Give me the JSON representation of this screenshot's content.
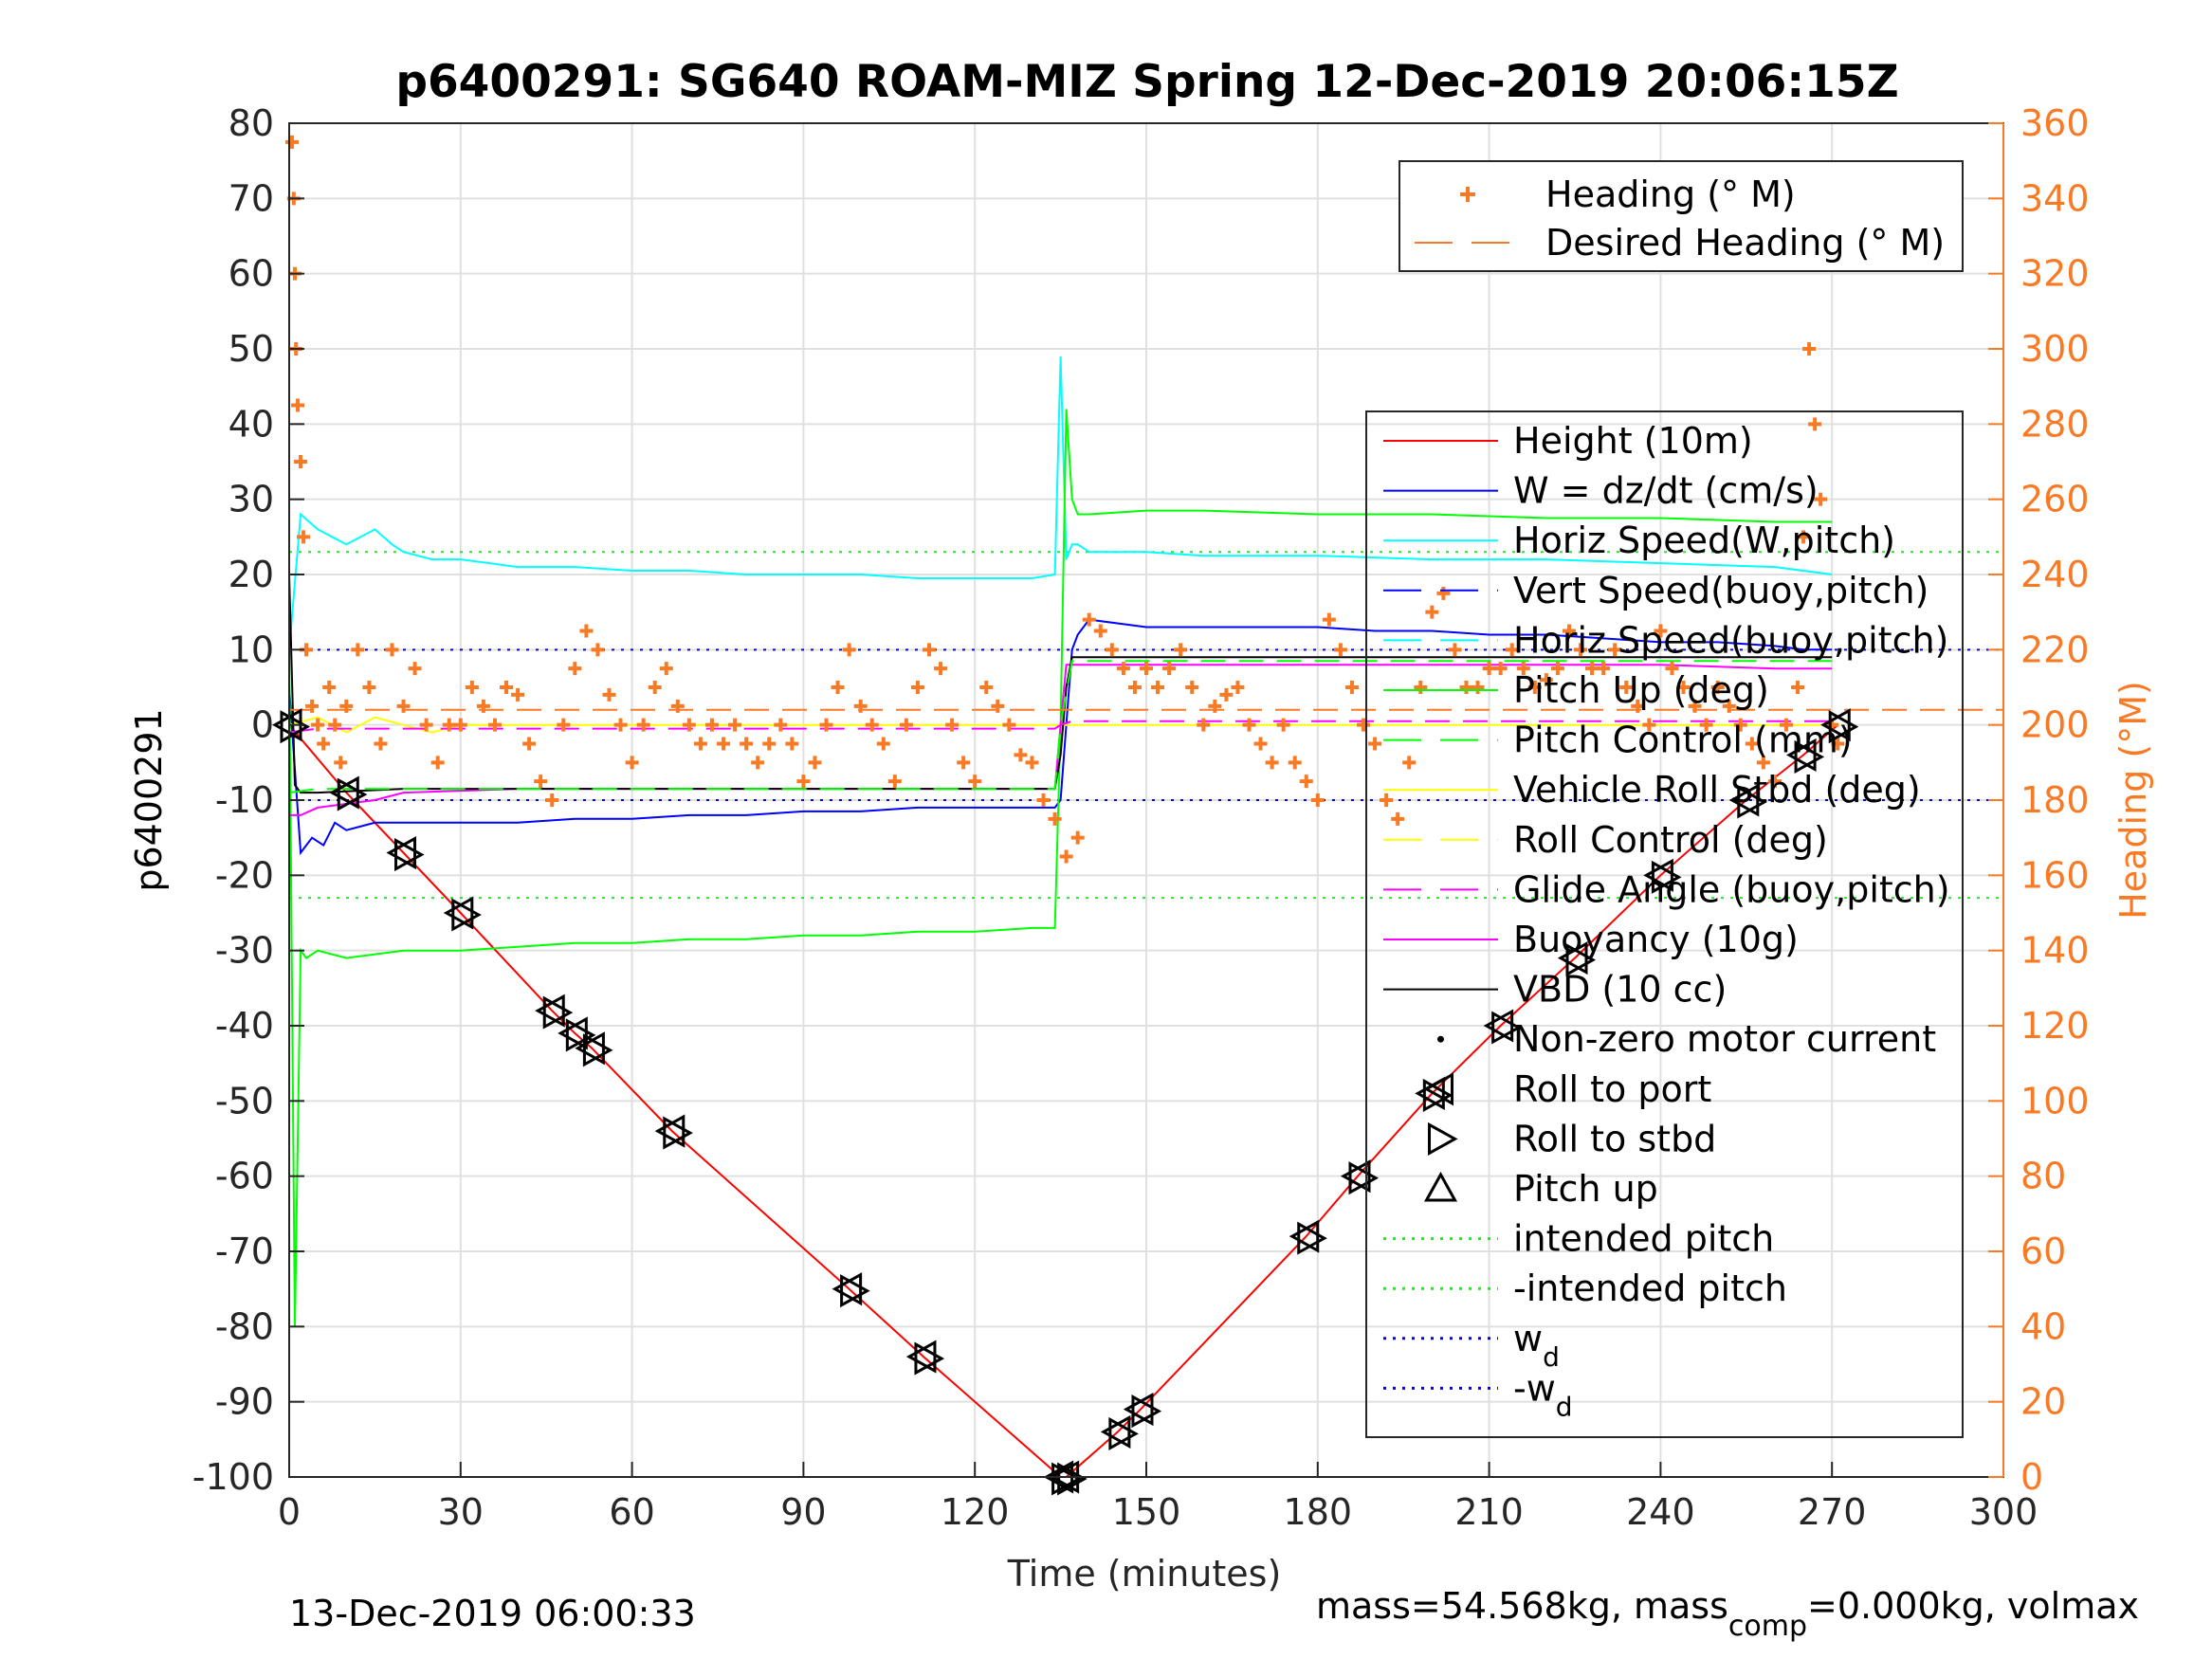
{
  "chart_data": {
    "type": "line",
    "title": "p6400291: SG640 ROAM-MIZ Spring 12-Dec-2019 20:06:15Z",
    "xlabel": "Time (minutes)",
    "ylabel": "p6400291",
    "y2label": "Heading (°M)",
    "xlim": [
      0,
      300
    ],
    "ylim": [
      -100,
      80
    ],
    "y2lim": [
      0,
      360
    ],
    "xticks": [
      0,
      30,
      60,
      90,
      120,
      150,
      180,
      210,
      240,
      270,
      300
    ],
    "yticks": [
      -100,
      -90,
      -80,
      -70,
      -60,
      -50,
      -40,
      -30,
      -20,
      -10,
      0,
      10,
      20,
      30,
      40,
      50,
      60,
      70,
      80
    ],
    "y2ticks": [
      0,
      20,
      40,
      60,
      80,
      100,
      120,
      140,
      160,
      180,
      200,
      220,
      240,
      260,
      280,
      300,
      320,
      340,
      360
    ],
    "grid": true,
    "footer_left": "13-Dec-2019 06:00:33",
    "footer_right_prefix": "mass=54.568kg, mass",
    "footer_right_sub": "comp",
    "footer_right_suffix": "=0.000kg, volmax",
    "colors": {
      "heading": "#f97a25",
      "height": "#ff0000",
      "w": "#0000ff",
      "horiz_speed": "#00ffff",
      "pitch": "#00ff00",
      "roll": "#ffff00",
      "glide": "#ff00ff",
      "vbd": "#000000",
      "axis_right": "#f97a25"
    },
    "legend_heading": [
      {
        "label": "Heading (° M)",
        "style": "plus",
        "color": "#f97a25"
      },
      {
        "label": "Desired Heading (° M)",
        "style": "dash",
        "color": "#f97a25"
      }
    ],
    "legend_main": [
      {
        "label": "Height (10m)",
        "style": "line",
        "color": "#ff0000"
      },
      {
        "label": "W = dz/dt (cm/s)",
        "style": "line",
        "color": "#0000ff"
      },
      {
        "label": "Horiz Speed(W,pitch)",
        "style": "line",
        "color": "#00ffff"
      },
      {
        "label": "Vert Speed(buoy,pitch)",
        "style": "dash",
        "color": "#0000ff"
      },
      {
        "label": "Horiz Speed(buoy,pitch)",
        "style": "dash",
        "color": "#00ffff"
      },
      {
        "label": "Pitch Up (deg)",
        "style": "line",
        "color": "#00ff00"
      },
      {
        "label": "Pitch Control (mm)",
        "style": "dash",
        "color": "#00ff00"
      },
      {
        "label": "Vehicle Roll Stbd (deg)",
        "style": "line",
        "color": "#ffff00"
      },
      {
        "label": "Roll Control (deg)",
        "style": "dash",
        "color": "#ffff00"
      },
      {
        "label": "Glide Angle (buoy,pitch)",
        "style": "dash",
        "color": "#ff00ff"
      },
      {
        "label": "Buoyancy (10g)",
        "style": "line",
        "color": "#ff00ff"
      },
      {
        "label": "VBD (10 cc)",
        "style": "line",
        "color": "#000000"
      },
      {
        "label": "Non-zero motor current",
        "style": "dot",
        "color": "#000000"
      },
      {
        "label": "Roll to port",
        "style": "tri-left",
        "color": "#000000"
      },
      {
        "label": "Roll to stbd",
        "style": "tri-right",
        "color": "#000000"
      },
      {
        "label": "Pitch up",
        "style": "tri-up",
        "color": "#000000"
      },
      {
        "label": "intended pitch",
        "style": "dot-line",
        "color": "#00ff00"
      },
      {
        "label": "-intended pitch",
        "style": "dot-line",
        "color": "#00ff00"
      },
      {
        "label": "w",
        "sub": "d",
        "style": "dot-line",
        "color": "#0000ff"
      },
      {
        "label": "-w",
        "sub": "d",
        "style": "dot-line",
        "color": "#0000ff"
      }
    ],
    "reference_lines": [
      {
        "y": 23,
        "color": "#00ff00"
      },
      {
        "y": -23,
        "color": "#00ff00"
      },
      {
        "y": 10,
        "color": "#0000ff"
      },
      {
        "y": -10,
        "color": "#0000ff"
      }
    ],
    "series": [
      {
        "name": "Height (10m)",
        "color": "#ff0000",
        "axis": "left",
        "x": [
          0,
          10,
          20,
          30,
          46,
          50,
          53,
          67,
          98,
          111,
          135,
          136,
          145,
          149,
          178,
          187,
          200,
          212,
          225,
          240,
          255,
          265,
          271
        ],
        "y": [
          0,
          -9,
          -17,
          -25,
          -38,
          -41,
          -43,
          -54,
          -75,
          -84,
          -100,
          -100,
          -94,
          -91,
          -68,
          -60,
          -49,
          -40,
          -31,
          -20,
          -10,
          -4,
          0
        ]
      },
      {
        "name": "W = dz/dt (cm/s)",
        "color": "#0000ff",
        "axis": "left",
        "x": [
          0,
          2,
          4,
          6,
          8,
          10,
          15,
          20,
          30,
          40,
          50,
          60,
          70,
          80,
          90,
          100,
          110,
          120,
          130,
          134,
          135,
          136,
          137,
          138,
          140,
          150,
          160,
          170,
          180,
          190,
          200,
          210,
          220,
          230,
          240,
          250,
          260,
          265,
          270
        ],
        "y": [
          5,
          -17,
          -15,
          -16,
          -13,
          -14,
          -13,
          -13,
          -13,
          -13,
          -12.5,
          -12.5,
          -12,
          -12,
          -11.5,
          -11.5,
          -11,
          -11,
          -11,
          -11,
          -10,
          0,
          10,
          12,
          14,
          13,
          13,
          13,
          13,
          12.5,
          12.5,
          12,
          12,
          11.5,
          11,
          11,
          10.5,
          10,
          10
        ]
      },
      {
        "name": "Horiz Speed(W,pitch)",
        "color": "#00ffff",
        "axis": "left",
        "x": [
          0,
          2,
          5,
          10,
          15,
          18,
          20,
          25,
          30,
          40,
          50,
          60,
          70,
          80,
          90,
          100,
          110,
          120,
          130,
          134,
          135,
          136,
          137,
          138,
          140,
          150,
          160,
          180,
          200,
          220,
          240,
          260,
          270
        ],
        "y": [
          10,
          28,
          26,
          24,
          26,
          24,
          23,
          22,
          22,
          21,
          21,
          20.5,
          20.5,
          20,
          20,
          20,
          19.5,
          19.5,
          19.5,
          20,
          49,
          22,
          24,
          24,
          23,
          23,
          22.5,
          22.5,
          22,
          22,
          21.5,
          21,
          20
        ]
      },
      {
        "name": "Pitch Up (deg)",
        "color": "#00ff00",
        "axis": "left",
        "x": [
          0,
          1,
          2,
          3,
          5,
          10,
          20,
          30,
          40,
          50,
          60,
          70,
          80,
          90,
          100,
          110,
          120,
          130,
          134,
          135,
          136,
          137,
          138,
          140,
          150,
          160,
          180,
          200,
          220,
          240,
          260,
          270
        ],
        "y": [
          10,
          -80,
          -30,
          -31,
          -30,
          -31,
          -30,
          -30,
          -29.5,
          -29,
          -29,
          -28.5,
          -28.5,
          -28,
          -28,
          -27.5,
          -27.5,
          -27,
          -27,
          0,
          42,
          30,
          28,
          28,
          28.5,
          28.5,
          28,
          28,
          27.5,
          27.5,
          27,
          27
        ]
      },
      {
        "name": "Vehicle Roll Stbd (deg)",
        "color": "#ffff00",
        "axis": "left",
        "x": [
          0,
          5,
          10,
          15,
          20,
          25,
          30,
          40,
          50,
          60,
          70,
          80,
          90,
          100,
          110,
          120,
          130,
          135,
          140,
          150,
          160,
          170,
          180,
          190,
          200,
          210,
          220,
          230,
          240,
          250,
          260,
          270
        ],
        "y": [
          0,
          1,
          -1,
          1,
          0,
          -1,
          0,
          0,
          0,
          0,
          0,
          0,
          0,
          0,
          0,
          0,
          0,
          0,
          0,
          0,
          0,
          0,
          0,
          0,
          0,
          0,
          0,
          0,
          0,
          0,
          0,
          0
        ]
      },
      {
        "name": "Buoyancy (10g)",
        "color": "#ff00ff",
        "axis": "left",
        "x": [
          0,
          2,
          5,
          15,
          20,
          40,
          60,
          80,
          100,
          120,
          130,
          134,
          135,
          136,
          137,
          140,
          160,
          200,
          220,
          240,
          260,
          270
        ],
        "y": [
          -12,
          -12,
          -11,
          -10,
          -9,
          -8.5,
          -8.5,
          -8.5,
          -8.5,
          -8.5,
          -8.5,
          -8.5,
          0,
          8,
          8,
          8,
          8,
          8,
          8,
          8,
          7.5,
          7.5
        ]
      },
      {
        "name": "VBD (10 cc)",
        "color": "#000000",
        "axis": "left",
        "x": [
          0,
          1,
          2,
          5,
          20,
          40,
          60,
          80,
          100,
          120,
          134,
          135,
          136,
          137,
          140,
          160,
          200,
          240,
          270
        ],
        "y": [
          20,
          -8,
          -9,
          -9,
          -8.5,
          -8.5,
          -8.5,
          -8.5,
          -8.5,
          -8.5,
          -8.5,
          -4,
          5,
          9,
          9,
          9,
          9,
          9,
          9
        ]
      },
      {
        "name": "Glide Angle (buoy,pitch)",
        "color": "#ff00ff",
        "axis": "left",
        "dashed": true,
        "x": [
          0,
          5,
          134,
          135,
          137,
          270
        ],
        "y": [
          -1,
          -0.5,
          -0.5,
          0,
          0.5,
          0.5
        ]
      },
      {
        "name": "Pitch Control (mm)",
        "color": "#00ff00",
        "axis": "left",
        "dashed": true,
        "x": [
          0,
          5,
          134,
          135,
          137,
          270
        ],
        "y": [
          -9,
          -8.5,
          -8.5,
          0,
          8.5,
          8.5
        ]
      },
      {
        "name": "Desired Heading (° M)",
        "color": "#f97a25",
        "axis": "right",
        "dashed": true,
        "x": [
          0,
          300
        ],
        "y": [
          204,
          204
        ]
      },
      {
        "name": "Heading (° M)",
        "color": "#f97a25",
        "axis": "right",
        "marker": "plus",
        "x": [
          0.5,
          0.8,
          1,
          1.2,
          1.5,
          2,
          2.5,
          3,
          4,
          5,
          6,
          7,
          8,
          9,
          10,
          12,
          14,
          16,
          18,
          20,
          22,
          24,
          26,
          28,
          30,
          32,
          34,
          36,
          38,
          40,
          42,
          44,
          46,
          48,
          50,
          52,
          54,
          56,
          58,
          60,
          62,
          64,
          66,
          68,
          70,
          72,
          74,
          76,
          78,
          80,
          82,
          84,
          86,
          88,
          90,
          92,
          94,
          96,
          98,
          100,
          102,
          104,
          106,
          108,
          110,
          112,
          114,
          116,
          118,
          120,
          122,
          124,
          126,
          128,
          130,
          132,
          134,
          136,
          138,
          140,
          142,
          144,
          146,
          148,
          150,
          152,
          154,
          156,
          158,
          160,
          162,
          164,
          166,
          168,
          170,
          172,
          174,
          176,
          178,
          180,
          182,
          184,
          186,
          188,
          190,
          192,
          194,
          196,
          198,
          200,
          202,
          204,
          206,
          208,
          210,
          212,
          214,
          216,
          218,
          220,
          222,
          224,
          226,
          228,
          230,
          232,
          234,
          236,
          238,
          240,
          242,
          244,
          246,
          248,
          250,
          252,
          254,
          256,
          258,
          260,
          262,
          264,
          265,
          266,
          267,
          268,
          270,
          271
        ],
        "y": [
          355,
          340,
          320,
          300,
          285,
          270,
          250,
          220,
          205,
          200,
          195,
          210,
          200,
          190,
          205,
          220,
          210,
          195,
          220,
          205,
          215,
          200,
          190,
          200,
          200,
          210,
          205,
          200,
          210,
          208,
          195,
          185,
          180,
          200,
          215,
          225,
          220,
          208,
          200,
          190,
          200,
          210,
          215,
          205,
          200,
          195,
          200,
          195,
          200,
          195,
          190,
          195,
          200,
          195,
          185,
          190,
          200,
          210,
          220,
          205,
          200,
          195,
          185,
          200,
          210,
          220,
          215,
          200,
          190,
          185,
          210,
          205,
          200,
          192,
          190,
          180,
          175,
          165,
          170,
          228,
          225,
          220,
          215,
          210,
          215,
          210,
          215,
          220,
          210,
          200,
          205,
          208,
          210,
          200,
          195,
          190,
          200,
          190,
          185,
          180,
          228,
          220,
          210,
          200,
          195,
          180,
          175,
          190,
          210,
          230,
          235,
          220,
          210,
          210,
          215,
          215,
          220,
          215,
          210,
          212,
          215,
          225,
          220,
          215,
          215,
          220,
          210,
          205,
          200,
          225,
          215,
          210,
          205,
          200,
          210,
          205,
          200,
          195,
          190,
          185,
          200,
          210,
          250,
          300,
          280,
          260,
          200,
          195
        ]
      }
    ]
  }
}
